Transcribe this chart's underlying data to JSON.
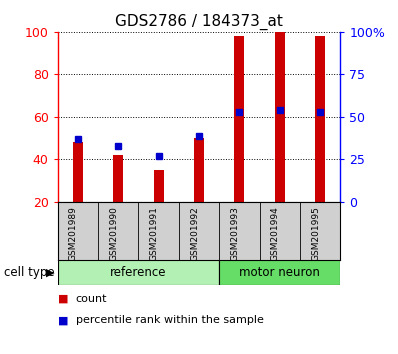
{
  "title": "GDS2786 / 184373_at",
  "samples": [
    "GSM201989",
    "GSM201990",
    "GSM201991",
    "GSM201992",
    "GSM201993",
    "GSM201994",
    "GSM201995"
  ],
  "count_values": [
    48,
    42,
    35,
    50,
    98,
    100,
    98
  ],
  "percentile_values": [
    37,
    33,
    27,
    39,
    53,
    54,
    53
  ],
  "ylim_left": [
    20,
    100
  ],
  "ylim_right": [
    0,
    100
  ],
  "yticks_left": [
    20,
    40,
    60,
    80,
    100
  ],
  "ytick_labels_right": [
    "0",
    "25",
    "50",
    "75",
    "100%"
  ],
  "yticks_right": [
    0,
    25,
    50,
    75,
    100
  ],
  "bar_color": "#cc0000",
  "dot_color": "#0000cc",
  "reference_color": "#b3f0b3",
  "motor_color": "#66dd66",
  "xtick_bg_color": "#d0d0d0",
  "reference_label": "reference",
  "motor_label": "motor neuron",
  "cell_type_label": "cell type",
  "legend_count": "count",
  "legend_percentile": "percentile rank within the sample",
  "n_reference": 4,
  "n_motor": 3,
  "background_color": "#ffffff",
  "bar_width": 0.25
}
